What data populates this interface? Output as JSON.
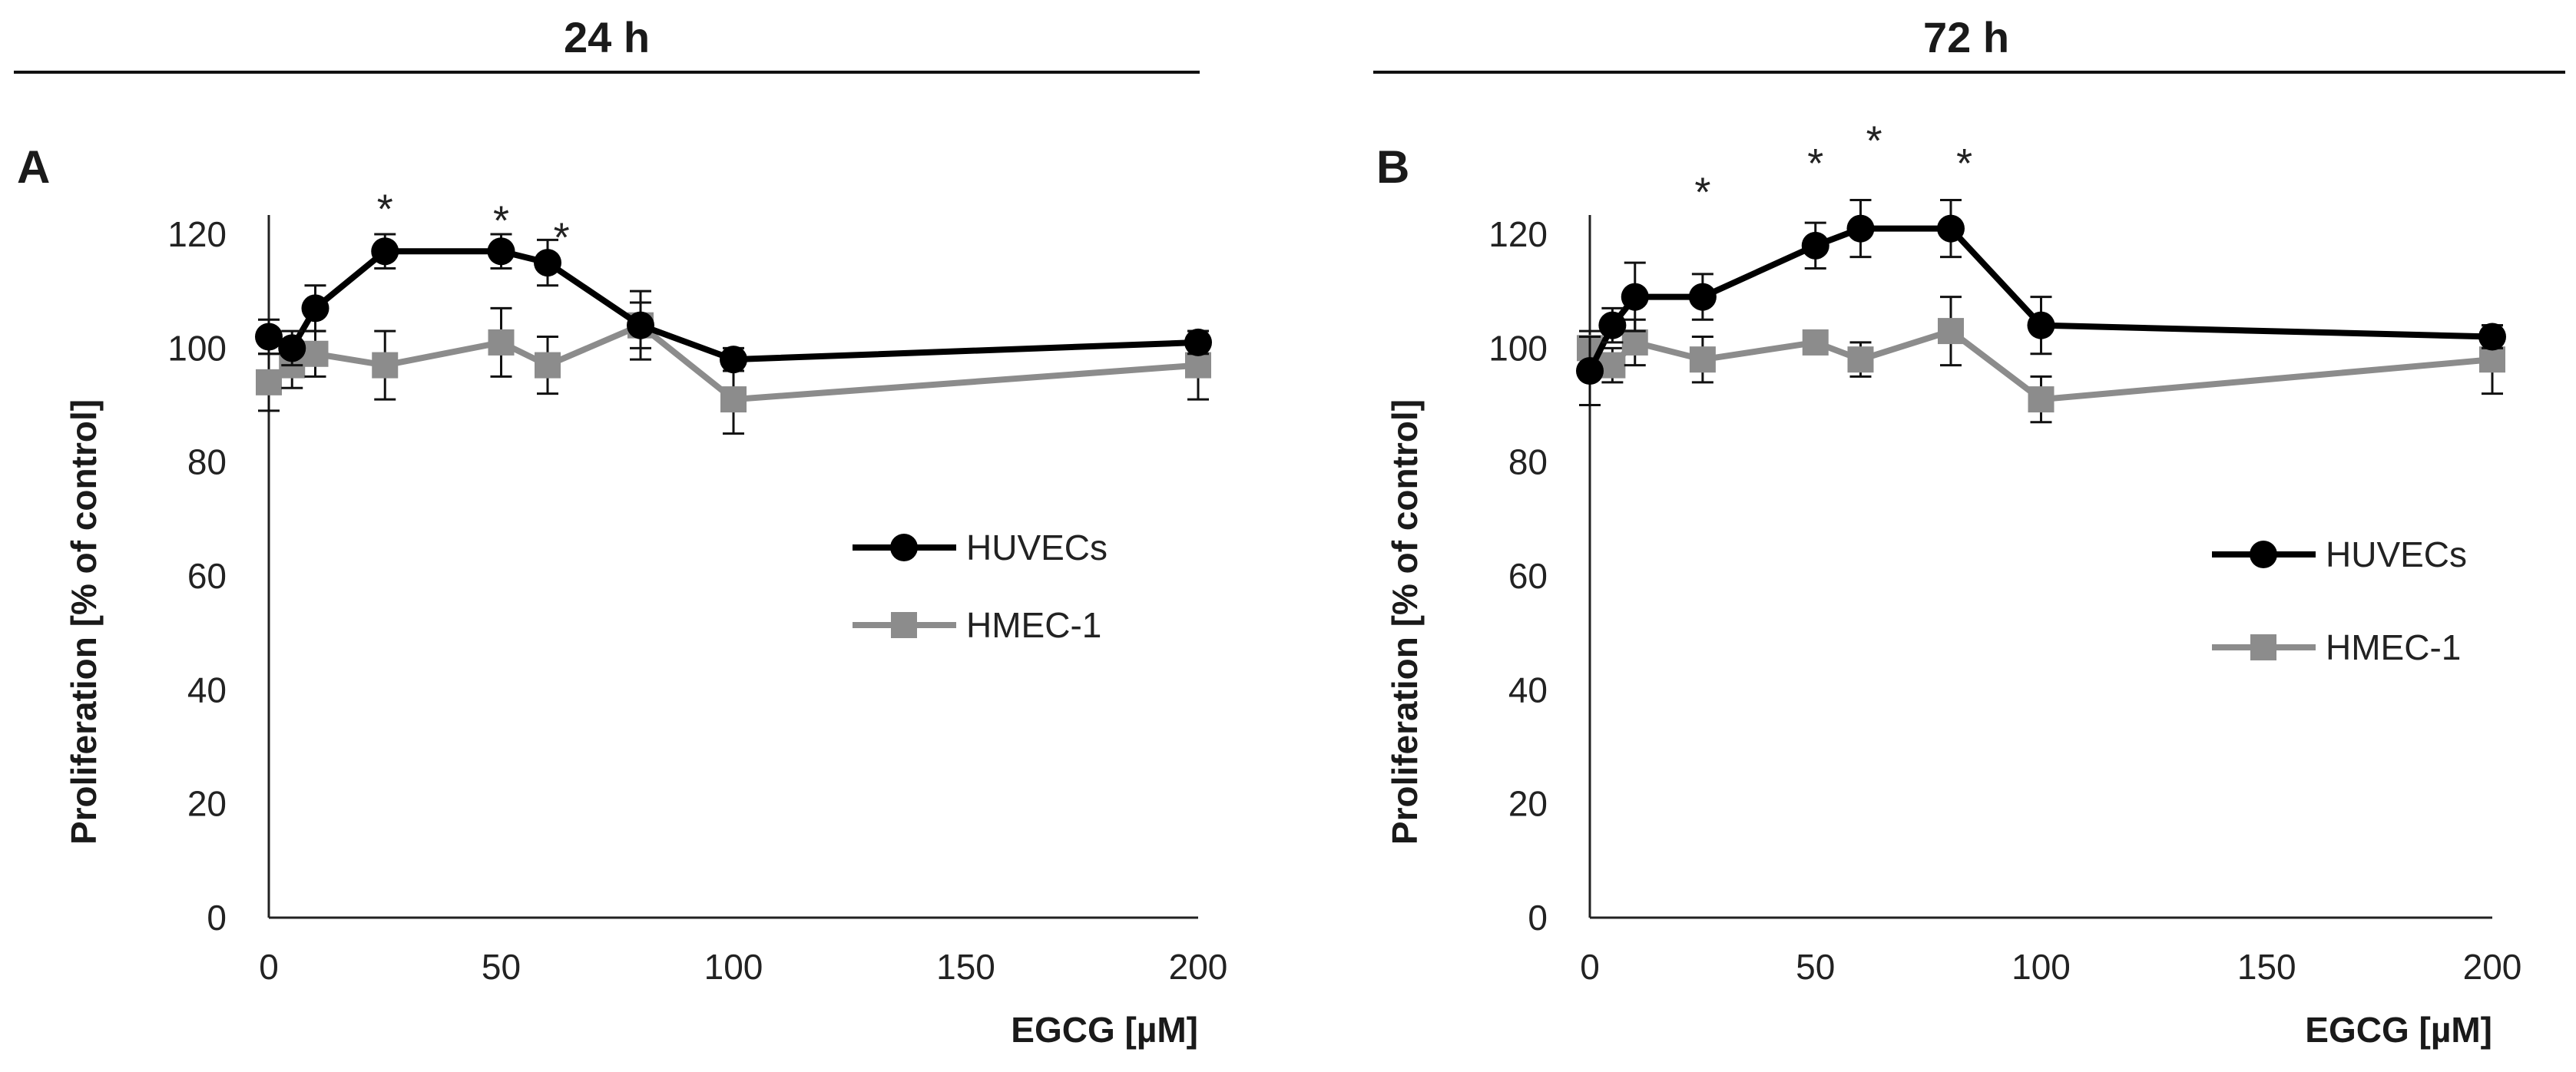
{
  "chart_data": [
    {
      "type": "line",
      "panel": "A",
      "title": "24 h",
      "xlabel": "EGCG [µM]",
      "ylabel": "Proliferation [% of control]",
      "xlim": [
        0,
        200
      ],
      "ylim": [
        0,
        120
      ],
      "xticks": [
        "0",
        "50",
        "100",
        "150",
        "200"
      ],
      "yticks": [
        "0",
        "20",
        "40",
        "60",
        "80",
        "100",
        "120"
      ],
      "legend": [
        "HUVECs",
        "HMEC-1"
      ],
      "series": [
        {
          "name": "HUVECs",
          "color": "#000000",
          "marker": "circle",
          "x": [
            0,
            5,
            10,
            25,
            50,
            60,
            80,
            100,
            200
          ],
          "y": [
            102,
            100,
            107,
            117,
            117,
            115,
            104,
            98,
            101
          ],
          "err": [
            3,
            3,
            4,
            3,
            3,
            4,
            4,
            2,
            2
          ]
        },
        {
          "name": "HMEC-1",
          "color": "#8c8c8c",
          "marker": "square",
          "x": [
            0,
            5,
            10,
            25,
            50,
            60,
            80,
            100,
            200
          ],
          "y": [
            94,
            97,
            99,
            97,
            101,
            97,
            104,
            91,
            97
          ],
          "err": [
            5,
            4,
            4,
            6,
            6,
            5,
            6,
            6,
            6
          ]
        }
      ],
      "annotations": [
        {
          "text": "*",
          "x": 25,
          "y": 126
        },
        {
          "text": "*",
          "x": 50,
          "y": 124
        },
        {
          "text": "*",
          "x": 63,
          "y": 121
        }
      ]
    },
    {
      "type": "line",
      "panel": "B",
      "title": "72 h",
      "xlabel": "EGCG [µM]",
      "ylabel": "Proliferation [% of control]",
      "xlim": [
        0,
        200
      ],
      "ylim": [
        0,
        120
      ],
      "xticks": [
        "0",
        "50",
        "100",
        "150",
        "200"
      ],
      "yticks": [
        "0",
        "20",
        "40",
        "60",
        "80",
        "100",
        "120"
      ],
      "legend": [
        "HUVECs",
        "HMEC-1"
      ],
      "series": [
        {
          "name": "HUVECs",
          "color": "#000000",
          "marker": "circle",
          "x": [
            0,
            5,
            10,
            25,
            50,
            60,
            80,
            100,
            200
          ],
          "y": [
            96,
            104,
            109,
            109,
            118,
            121,
            121,
            104,
            102
          ],
          "err": [
            6,
            3,
            6,
            4,
            4,
            5,
            5,
            5,
            2
          ]
        },
        {
          "name": "HMEC-1",
          "color": "#8c8c8c",
          "marker": "square",
          "x": [
            0,
            5,
            10,
            25,
            50,
            60,
            80,
            100,
            200
          ],
          "y": [
            100,
            97,
            101,
            98,
            101,
            98,
            103,
            91,
            98
          ],
          "err": [
            3,
            3,
            4,
            4,
            2,
            3,
            6,
            4,
            6
          ]
        }
      ],
      "annotations": [
        {
          "text": "*",
          "x": 25,
          "y": 129
        },
        {
          "text": "*",
          "x": 50,
          "y": 134
        },
        {
          "text": "*",
          "x": 63,
          "y": 138
        },
        {
          "text": "*",
          "x": 83,
          "y": 134
        }
      ]
    }
  ]
}
